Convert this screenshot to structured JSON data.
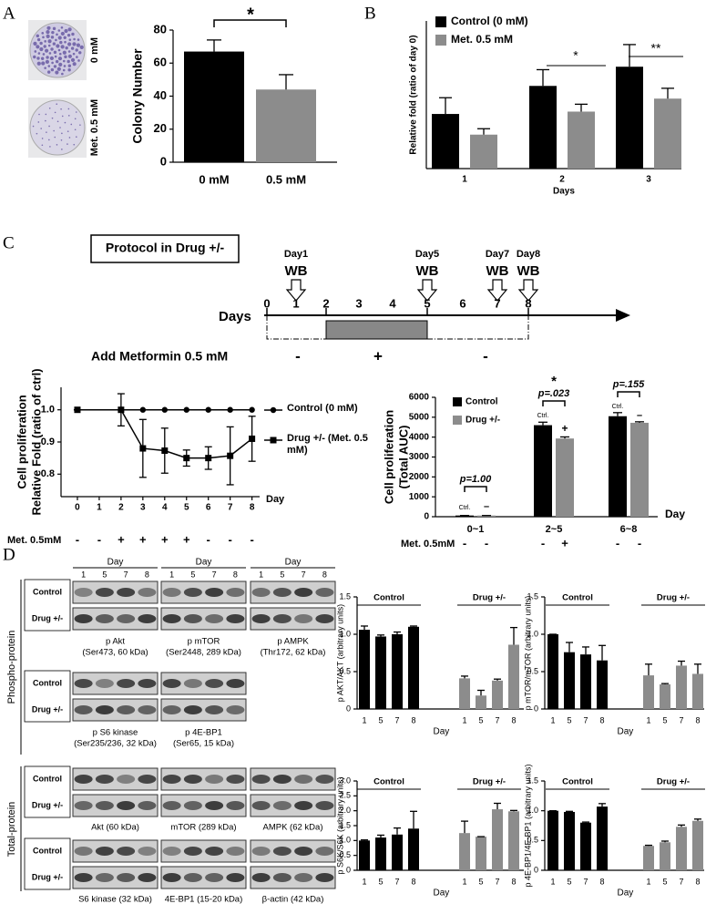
{
  "labels": {
    "panels": [
      "A",
      "B",
      "C",
      "D"
    ]
  },
  "photos": {
    "labels": [
      "0 mM",
      "Met. 0.5 mM"
    ]
  },
  "protocol": {
    "title": "Protocol in Drug +/-",
    "events": [
      {
        "day": "Day1",
        "assay": "WB"
      },
      {
        "day": "Day5",
        "assay": "WB"
      },
      {
        "day": "Day7",
        "assay": "WB"
      },
      {
        "day": "Day8",
        "assay": "WB"
      }
    ],
    "axis_label": "Days",
    "days": [
      0,
      1,
      2,
      3,
      4,
      5,
      6,
      7,
      8
    ],
    "treatment": "Add Metformin 0.5 mM",
    "phases": [
      "-",
      "+",
      "-"
    ]
  },
  "blots": {
    "day_label": "Day",
    "days": [
      "1",
      "5",
      "7",
      "8"
    ],
    "rows": [
      "Control",
      "Drug +/-"
    ],
    "groups": [
      "Phospho-protein",
      "Total-protein"
    ],
    "phospho": [
      {
        "name": "p Akt",
        "detail": "(Ser473, 60 kDa)"
      },
      {
        "name": "p  mTOR",
        "detail": "(Ser2448, 289 kDa)"
      },
      {
        "name": "p  AMPK",
        "detail": "(Thr172, 62 kDa)"
      },
      {
        "name": "p S6 kinase",
        "detail": "(Ser235/236, 32 kDa)"
      },
      {
        "name": "p 4E-BP1",
        "detail": "(Ser65, 15 kDa)"
      }
    ],
    "total": [
      "Akt (60 kDa)",
      "mTOR (289 kDa)",
      "AMPK (62 kDa)",
      "S6 kinase (32 kDa)",
      "4E-BP1 (15-20 kDa)",
      "β-actin (42 kDa)"
    ]
  },
  "chart_data": [
    {
      "type": "bar",
      "categories": [
        "0 mM",
        "0.5 mM"
      ],
      "values": [
        67,
        44
      ],
      "errors": [
        7,
        9
      ],
      "colors": [
        "#000000",
        "#8c8c8c"
      ],
      "ylabel": "Colony Number",
      "ylim": [
        0,
        80
      ],
      "yticks": [
        0,
        20,
        40,
        60,
        80
      ],
      "annotations": [
        "*"
      ]
    },
    {
      "type": "bar",
      "categories": [
        "1",
        "2",
        "3"
      ],
      "xlabel": "Days",
      "ylabel": "Relative fold (ratio of day 0)",
      "ylim": [
        0,
        5
      ],
      "series": [
        {
          "name": "Control (0 mM)",
          "color": "#000000",
          "values": [
            1.85,
            2.8,
            3.45
          ],
          "errors": [
            0.55,
            0.55,
            0.75
          ]
        },
        {
          "name": "Met. 0.5 mM",
          "color": "#8c8c8c",
          "values": [
            1.15,
            1.93,
            2.37
          ],
          "errors": [
            0.2,
            0.25,
            0.35
          ]
        }
      ],
      "annotations": [
        "*",
        "**"
      ]
    },
    {
      "type": "line",
      "x": [
        0,
        2,
        3,
        4,
        5,
        6,
        7,
        8
      ],
      "xlim": [
        -0.75,
        8.35
      ],
      "xticks": [
        0,
        1,
        2,
        3,
        4,
        5,
        6,
        7,
        8
      ],
      "xlabel": "Day",
      "ylabel": [
        "Cell proliferation",
        "Relative Fold (ratio of ctrl)"
      ],
      "ylim": [
        0.73,
        1.07
      ],
      "yticks": [
        0.8,
        0.9,
        {
          "value": 1,
          "label": "1.0"
        }
      ],
      "series": [
        {
          "name": "Control (0 mM)",
          "color": "#000000",
          "marker": "circle",
          "values": [
            1,
            1,
            1,
            1,
            1,
            1,
            1,
            1
          ]
        },
        {
          "name": "Drug +/- (Met. 0.5 mM)",
          "color": "#000000",
          "marker": "square",
          "values": [
            1,
            1,
            0.88,
            0.873,
            0.85,
            0.85,
            0.857,
            0.91
          ],
          "errors": [
            0,
            0.05,
            0.09,
            0.07,
            0.025,
            0.035,
            0.09,
            0.07
          ]
        }
      ],
      "treatment": {
        "label": "Met. 0.5mM",
        "signs": [
          "-",
          "-",
          "+",
          "+",
          "+",
          "+",
          "-",
          "-",
          "-"
        ]
      }
    },
    {
      "type": "bar",
      "categories": [
        "0~1",
        "2~5",
        "6~8"
      ],
      "xlabel": "Day",
      "ylabel": [
        "Cell proliferation",
        "(Total AUC)"
      ],
      "ylim": [
        0,
        6000
      ],
      "yticks": [
        0,
        1000,
        2000,
        3000,
        4000,
        5000,
        6000
      ],
      "series": [
        {
          "name": "Control",
          "color": "#000000",
          "values": [
            60,
            4600,
            5050
          ],
          "errors": [
            0,
            150,
            180
          ]
        },
        {
          "name": "Drug +/-",
          "color": "#8c8c8c",
          "values": [
            60,
            3930,
            4720
          ],
          "errors": [
            0,
            80,
            50
          ]
        }
      ],
      "annotations": [
        "p=1.00",
        "Ctrl.",
        "–",
        "*",
        "p=.023",
        "Ctrl.",
        "+",
        "p=.155",
        "Ctrl.",
        "–"
      ],
      "treatment": {
        "label": "Met. 0.5mM",
        "signs": [
          "-",
          "-",
          "-",
          "+",
          "-",
          "-"
        ]
      }
    },
    {
      "type": "bar",
      "categories": [
        "1",
        "5",
        "7",
        "8"
      ],
      "xlabel": "Day",
      "ylabel": "p AKT/AKT (arbitrary units)",
      "ylim": [
        0,
        1.5
      ],
      "yticks": [
        0,
        0.5,
        {
          "value": 1,
          "label": "1.0"
        },
        1.5
      ],
      "series": [
        {
          "name": "Control",
          "color": "#000000",
          "values": [
            1.06,
            0.97,
            1.0,
            1.1
          ],
          "errors": [
            0.05,
            0.02,
            0.03,
            0.01
          ]
        },
        {
          "name": "Drug +/-",
          "color": "#8c8c8c",
          "values": [
            0.41,
            0.18,
            0.38,
            0.86
          ],
          "errors": [
            0.03,
            0.07,
            0.02,
            0.23
          ]
        }
      ]
    },
    {
      "type": "bar",
      "categories": [
        "1",
        "5",
        "7",
        "8"
      ],
      "xlabel": "Day",
      "ylabel": "p mTOR/mTOR (arbitrary units)",
      "ylim": [
        0,
        1.5
      ],
      "yticks": [
        0,
        0.5,
        {
          "value": 1,
          "label": "1.0"
        },
        1.5
      ],
      "series": [
        {
          "name": "Control",
          "color": "#000000",
          "values": [
            1.0,
            0.76,
            0.73,
            0.65
          ],
          "errors": [
            0,
            0.13,
            0.1,
            0.2
          ]
        },
        {
          "name": "Drug +/-",
          "color": "#8c8c8c",
          "values": [
            0.45,
            0.33,
            0.58,
            0.47
          ],
          "errors": [
            0.15,
            0.01,
            0.06,
            0.13
          ]
        }
      ]
    },
    {
      "type": "bar",
      "categories": [
        "1",
        "5",
        "7",
        "8"
      ],
      "xlabel": "Day",
      "ylabel": "p S6K/S6K (arbitrary units)",
      "ylim": [
        0,
        3
      ],
      "yticks": [
        0,
        0.5,
        {
          "value": 1,
          "label": "1.0"
        },
        1.5,
        {
          "value": 2,
          "label": "2.0"
        },
        2.5,
        {
          "value": 3,
          "label": "3.0"
        }
      ],
      "series": [
        {
          "name": "Control",
          "color": "#000000",
          "values": [
            1.0,
            1.1,
            1.2,
            1.4
          ],
          "errors": [
            0.02,
            0.08,
            0.22,
            0.58
          ]
        },
        {
          "name": "Drug +/-",
          "color": "#8c8c8c",
          "values": [
            1.25,
            1.13,
            2.05,
            1.98
          ],
          "errors": [
            0.4,
            0,
            0.2,
            0.03
          ]
        }
      ]
    },
    {
      "type": "bar",
      "categories": [
        "1",
        "5",
        "7",
        "8"
      ],
      "xlabel": "Day",
      "ylabel": "p 4E-BP1/4E-BP1 (arbitrary units)",
      "ylim": [
        0,
        1.5
      ],
      "yticks": [
        0,
        0.5,
        {
          "value": 1,
          "label": "1.0"
        },
        1.5
      ],
      "series": [
        {
          "name": "Control",
          "color": "#000000",
          "values": [
            1.0,
            0.98,
            0.8,
            1.07
          ],
          "errors": [
            0,
            0.01,
            0.01,
            0.05
          ]
        },
        {
          "name": "Drug +/-",
          "color": "#8c8c8c",
          "values": [
            0.41,
            0.47,
            0.73,
            0.83
          ],
          "errors": [
            0.01,
            0.02,
            0.03,
            0.03
          ]
        }
      ]
    }
  ]
}
